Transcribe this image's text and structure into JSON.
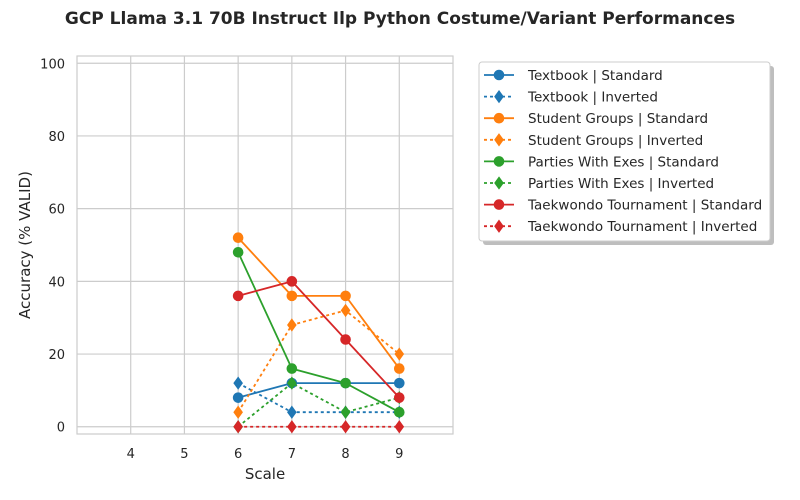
{
  "chart_data": {
    "type": "line",
    "title": "GCP Llama 3.1 70B Instruct Ilp Python Costume/Variant Performances",
    "xlabel": "Scale",
    "ylabel": "Accuracy (% VALID)",
    "xlim": [
      3,
      10
    ],
    "ylim": [
      -2,
      102
    ],
    "xticks": [
      4,
      5,
      6,
      7,
      8,
      9
    ],
    "yticks": [
      0,
      20,
      40,
      60,
      80,
      100
    ],
    "grid": true,
    "legend_position": "outside-right",
    "series": [
      {
        "name": "Textbook | Standard",
        "color": "#1f77b4",
        "style": "solid",
        "marker": "circle",
        "x": [
          6,
          7,
          8,
          9
        ],
        "y": [
          8,
          12,
          12,
          12
        ]
      },
      {
        "name": "Textbook | Inverted",
        "color": "#1f77b4",
        "style": "dashed",
        "marker": "diamond",
        "x": [
          6,
          7,
          8,
          9
        ],
        "y": [
          12,
          4,
          4,
          4
        ]
      },
      {
        "name": "Student Groups | Standard",
        "color": "#ff7f0e",
        "style": "solid",
        "marker": "circle",
        "x": [
          6,
          7,
          8,
          9
        ],
        "y": [
          52,
          36,
          36,
          16
        ]
      },
      {
        "name": "Student Groups | Inverted",
        "color": "#ff7f0e",
        "style": "dashed",
        "marker": "diamond",
        "x": [
          6,
          7,
          8,
          9
        ],
        "y": [
          4,
          28,
          32,
          20
        ]
      },
      {
        "name": "Parties With Exes | Standard",
        "color": "#2ca02c",
        "style": "solid",
        "marker": "circle",
        "x": [
          6,
          7,
          8,
          9
        ],
        "y": [
          48,
          16,
          12,
          4
        ]
      },
      {
        "name": "Parties With Exes | Inverted",
        "color": "#2ca02c",
        "style": "dashed",
        "marker": "diamond",
        "x": [
          6,
          7,
          8,
          9
        ],
        "y": [
          0,
          12,
          4,
          8
        ]
      },
      {
        "name": "Taekwondo Tournament | Standard",
        "color": "#d62728",
        "style": "solid",
        "marker": "circle",
        "x": [
          6,
          7,
          8,
          9
        ],
        "y": [
          36,
          40,
          24,
          8
        ]
      },
      {
        "name": "Taekwondo Tournament | Inverted",
        "color": "#d62728",
        "style": "dashed",
        "marker": "diamond",
        "x": [
          6,
          7,
          8,
          9
        ],
        "y": [
          0,
          0,
          0,
          0
        ]
      }
    ]
  }
}
